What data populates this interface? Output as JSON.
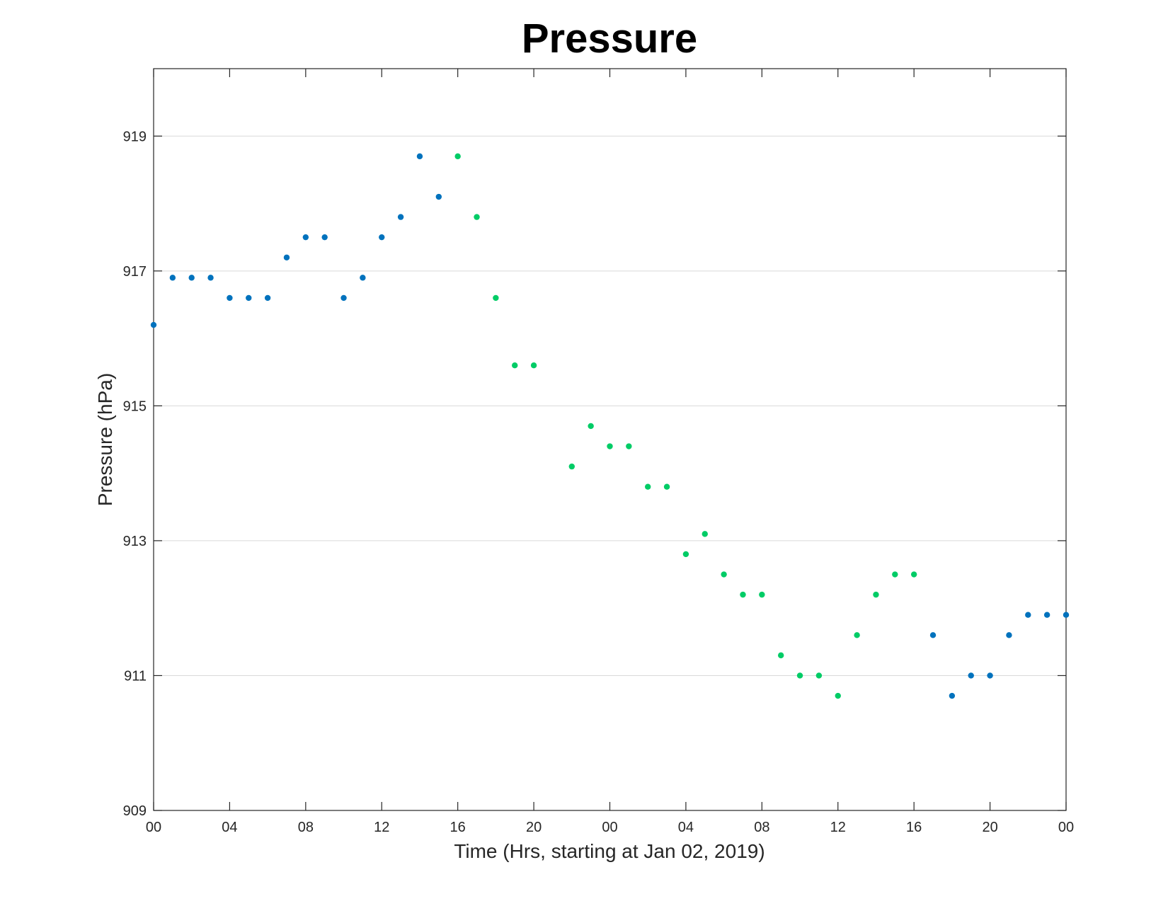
{
  "chart_data": {
    "type": "scatter",
    "title": "Pressure",
    "xlabel": "Time (Hrs, starting at Jan 02, 2019)",
    "ylabel": "Pressure (hPa)",
    "ylim": [
      909,
      920
    ],
    "xlim": [
      0,
      48
    ],
    "grid": "horizontal",
    "x_ticks": [
      0,
      4,
      8,
      12,
      16,
      20,
      24,
      28,
      32,
      36,
      40,
      44,
      48
    ],
    "x_tick_labels": [
      "00",
      "04",
      "08",
      "12",
      "16",
      "20",
      "00",
      "04",
      "08",
      "12",
      "16",
      "20",
      "00"
    ],
    "y_ticks": [
      909,
      911,
      913,
      915,
      917,
      919
    ],
    "y_tick_labels": [
      "909",
      "911",
      "913",
      "915",
      "917",
      "919"
    ],
    "colors": {
      "series_blue": "#0072BD",
      "series_green": "#00CC66",
      "grid": "#d9d9d9",
      "axis": "#262626"
    },
    "series": [
      {
        "color": "#0072BD",
        "x": [
          0,
          1,
          2,
          3,
          4,
          5,
          6,
          7,
          8,
          9,
          10,
          11,
          12,
          13,
          14,
          15,
          41,
          42,
          43,
          44,
          45,
          46,
          47,
          48
        ],
        "y": [
          916.2,
          916.9,
          916.9,
          916.9,
          916.6,
          916.6,
          916.6,
          917.2,
          917.5,
          917.5,
          916.6,
          916.9,
          917.5,
          917.8,
          918.7,
          918.1,
          911.6,
          910.7,
          911.0,
          911.0,
          911.6,
          911.9,
          911.9,
          911.9
        ]
      },
      {
        "color": "#00CC66",
        "x": [
          16,
          17,
          18,
          19,
          20,
          22,
          23,
          24,
          25,
          26,
          27,
          28,
          29,
          30,
          31,
          32,
          33,
          34,
          35,
          36,
          37,
          38,
          39,
          40
        ],
        "y": [
          918.7,
          917.8,
          916.6,
          915.6,
          915.6,
          914.1,
          914.7,
          914.4,
          914.4,
          913.8,
          913.8,
          912.8,
          913.1,
          912.5,
          912.2,
          912.2,
          911.3,
          911.0,
          911.0,
          910.7,
          911.6,
          912.2,
          912.5,
          912.5
        ]
      }
    ]
  }
}
